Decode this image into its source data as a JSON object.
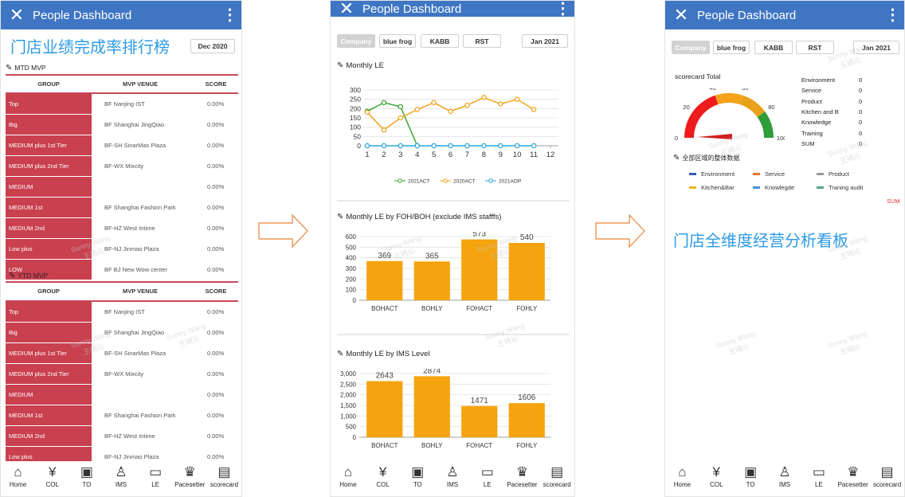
{
  "app": {
    "title": "People Dashboard",
    "close_glyph": "✕",
    "menu_glyph": "⋮"
  },
  "annotations": {
    "left": "门店业绩完成率排行榜",
    "right": "门店全维度经营分析看板"
  },
  "watermark": {
    "name": "Sunny Wang",
    "name_cn": "王晴沁"
  },
  "nav": [
    {
      "label": "Home",
      "icon": "home-icon",
      "glyph": "⌂"
    },
    {
      "label": "COL",
      "icon": "yen-doc-icon",
      "glyph": "¥"
    },
    {
      "label": "TO",
      "icon": "id-card-icon",
      "glyph": "▣"
    },
    {
      "label": "IMS",
      "icon": "person-icon",
      "glyph": "♙"
    },
    {
      "label": "LE",
      "icon": "monitor-search-icon",
      "glyph": "▭"
    },
    {
      "label": "Pacesetter",
      "icon": "trophy-icon",
      "glyph": "♛"
    },
    {
      "label": "scorecard",
      "icon": "clipboard-icon",
      "glyph": "▤"
    }
  ],
  "left": {
    "date": "Dec 2020",
    "mtd": {
      "title": "MTD MVP",
      "headers": [
        "GROUP",
        "MVP VENUE",
        "SCORE"
      ],
      "rows": [
        {
          "group": "Top",
          "venue": "BF Nanjing IST",
          "score": "0.00%"
        },
        {
          "group": "Big",
          "venue": "BF Shanghai JingQiao",
          "score": "0.00%"
        },
        {
          "group": "MEDIUM plus 1st Tier",
          "venue": "BF-SH SinarMas Plaza",
          "score": "0.00%"
        },
        {
          "group": "MEDIUM plus 2nd Tier",
          "venue": "BF-WX Mixcity",
          "score": "0.00%"
        },
        {
          "group": "MEDIUM",
          "venue": "",
          "score": "0.00%"
        },
        {
          "group": "MEDIUM 1st",
          "venue": "BF Shanghai Fashion Park",
          "score": "0.00%"
        },
        {
          "group": "MEDIUM 2nd",
          "venue": "BF-HZ West Intime",
          "score": "0.00%"
        },
        {
          "group": "Low plus",
          "venue": "BF-NJ Jinmao Plaza",
          "score": "0.00%"
        },
        {
          "group": "LOW",
          "venue": "BF BJ New Wow center",
          "score": "0.00%"
        }
      ]
    },
    "ytd": {
      "title": "YTD MVP",
      "headers": [
        "GROUP",
        "MVP VENUE",
        "SCORE"
      ],
      "rows": [
        {
          "group": "Top",
          "venue": "BF Nanjing IST",
          "score": "0.00%"
        },
        {
          "group": "Big",
          "venue": "BF Shanghai JingQiao",
          "score": "0.00%"
        },
        {
          "group": "MEDIUM plus 1st Tier",
          "venue": "BF-SH SinarMas Plaza",
          "score": "0.00%"
        },
        {
          "group": "MEDIUM plus 2nd Tier",
          "venue": "BF-WX Mixcity",
          "score": "0.00%"
        },
        {
          "group": "MEDIUM",
          "venue": "",
          "score": "0.00%"
        },
        {
          "group": "MEDIUM 1st",
          "venue": "BF Shanghai Fashion Park",
          "score": "0.00%"
        },
        {
          "group": "MEDIUM 2nd",
          "venue": "BF-HZ West Intime",
          "score": "0.00%"
        },
        {
          "group": "Low plus",
          "venue": "BF-NJ Jinmao Plaza",
          "score": "0.00%"
        }
      ]
    }
  },
  "filters": {
    "company": "Company",
    "b1": "blue frog",
    "b2": "KABB",
    "b3": "RST"
  },
  "middle": {
    "date": "Jan 2021",
    "line_title": "Monthly LE",
    "bar1_title": "Monthly LE by FOH/BOH (exclude IMS stafffs)",
    "bar2_title": "Monthly LE by IMS Level"
  },
  "right": {
    "date": "Jan 2021",
    "gauge_title": "scorecard Total",
    "gauge_ticks": [
      "0",
      "20",
      "40",
      "60",
      "80",
      "100"
    ],
    "gauge_value": 0,
    "scores": [
      {
        "label": "Environment",
        "value": "0"
      },
      {
        "label": "Service",
        "value": "0"
      },
      {
        "label": "Product",
        "value": "0"
      },
      {
        "label": "Kitchen and B",
        "value": "0"
      },
      {
        "label": "Knowledge",
        "value": "0"
      },
      {
        "label": "Training",
        "value": "0"
      },
      {
        "label": "SUM",
        "value": "0"
      }
    ],
    "overall_title": "全部区域的整体数据",
    "legend": [
      {
        "label": "Environment",
        "color": "#3b5bb5"
      },
      {
        "label": "Service",
        "color": "#e8742a"
      },
      {
        "label": "Product",
        "color": "#999999"
      },
      {
        "label": "Kitchen&Bar",
        "color": "#f2b322"
      },
      {
        "label": "Knowlegde",
        "color": "#4a90d9"
      },
      {
        "label": "Traning audit",
        "color": "#5aa58a"
      }
    ],
    "sum_label": "SUM"
  },
  "chart_data": [
    {
      "type": "line",
      "title": "Monthly LE",
      "x": [
        1,
        2,
        3,
        4,
        5,
        6,
        7,
        8,
        9,
        10,
        11,
        12
      ],
      "ylim": [
        0,
        300
      ],
      "yticks": [
        0,
        50,
        100,
        150,
        200,
        250,
        300
      ],
      "series": [
        {
          "name": "2021ACT",
          "color": "#3aa836",
          "values": [
            185,
            232,
            210,
            0,
            null,
            null,
            null,
            null,
            null,
            null,
            null,
            null
          ]
        },
        {
          "name": "2020ACT",
          "color": "#f2a31b",
          "values": [
            180,
            85,
            150,
            195,
            232,
            185,
            218,
            260,
            225,
            250,
            195,
            null
          ]
        },
        {
          "name": "2021AOP",
          "color": "#2aa5dd",
          "values": [
            0,
            0,
            0,
            0,
            0,
            0,
            0,
            0,
            0,
            0,
            0,
            null
          ]
        }
      ]
    },
    {
      "type": "bar",
      "title": "Monthly LE by FOH/BOH (exclude IMS stafffs)",
      "categories": [
        "BOHACT",
        "BOHLY",
        "FOHACT",
        "FOHLY"
      ],
      "values": [
        369,
        365,
        573,
        540
      ],
      "ylim": [
        0,
        600
      ],
      "yticks": [
        "0",
        "100",
        "200",
        "300",
        "400",
        "500",
        "600"
      ],
      "color": "#f5a30e"
    },
    {
      "type": "bar",
      "title": "Monthly LE by IMS Level",
      "categories": [
        "BOHACT",
        "BOHLY",
        "FOHACT",
        "FOHLY"
      ],
      "values": [
        2643,
        2874,
        1471,
        1606
      ],
      "ylim": [
        0,
        3000
      ],
      "yticks": [
        "0",
        "500",
        "1,000",
        "1,500",
        "2,000",
        "2,500",
        "3,000"
      ],
      "color": "#f5a30e"
    }
  ]
}
